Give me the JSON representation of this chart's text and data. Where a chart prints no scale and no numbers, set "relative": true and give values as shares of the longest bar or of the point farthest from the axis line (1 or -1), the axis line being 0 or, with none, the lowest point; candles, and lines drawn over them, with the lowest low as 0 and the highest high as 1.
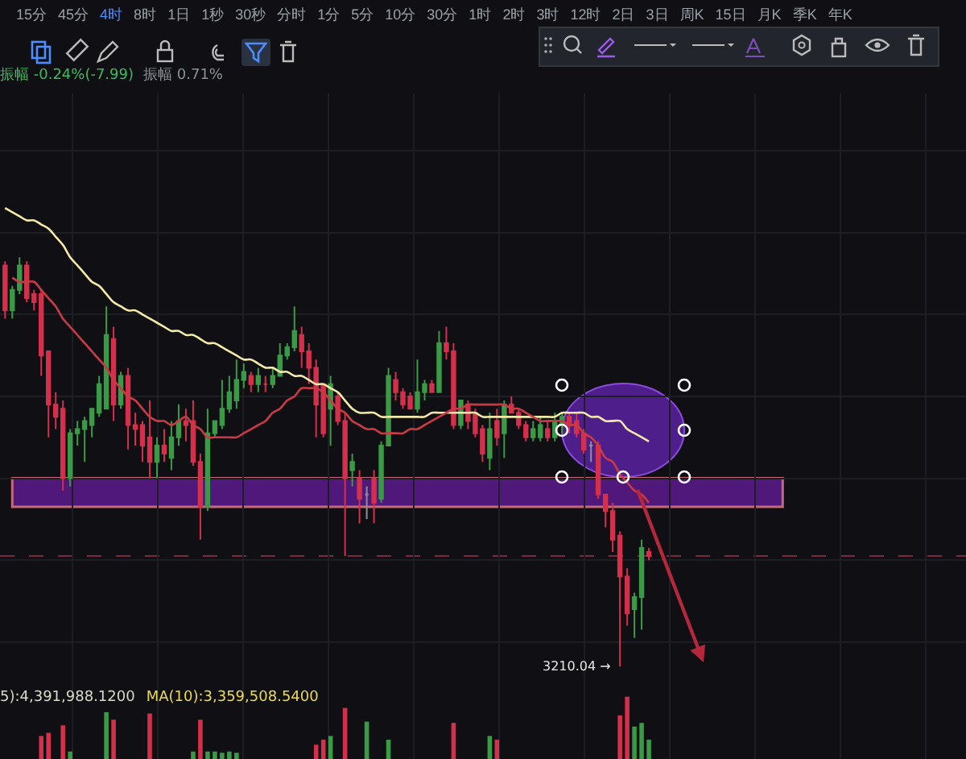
{
  "chart_data": [
    {
      "type": "candlestick",
      "relative": true,
      "grid": true,
      "categories": [
        null,
        null,
        null,
        null,
        null,
        null,
        null,
        null,
        null,
        null,
        null,
        null,
        null,
        null,
        null,
        null,
        null,
        null,
        null,
        null,
        null,
        null,
        null,
        null,
        null,
        null,
        null,
        null,
        null,
        null,
        null,
        null,
        null,
        null,
        null,
        null,
        null,
        null,
        null,
        null,
        null,
        null,
        null,
        null,
        null,
        null,
        null,
        null,
        null,
        null,
        null,
        null,
        null,
        null,
        null,
        null,
        null,
        null,
        null,
        null,
        null,
        null,
        null,
        null,
        null,
        null,
        null,
        null,
        null,
        null,
        null,
        null,
        null,
        null,
        null,
        null,
        null,
        null,
        null,
        null,
        null,
        null,
        null,
        null,
        null,
        null,
        null,
        null,
        null,
        null
      ],
      "series": [
        {
          "type": "candlestick",
          "colors": [
            "#d4304c",
            "#3a9a46",
            "#3a9a46",
            "#d4304c",
            "#d4304c",
            "#d4304c",
            "#d4304c",
            "#d4304c",
            "#d4304c",
            "#3a9a46",
            "#3a9a46",
            "#3a9a46",
            "#3a9a46",
            "#3a9a46",
            "#3a9a46",
            "#d4304c",
            "#3a9a46",
            "#d4304c",
            "#d4304c",
            "#d4304c",
            "#d4304c",
            "#3a9a46",
            "#d4304c",
            "#3a9a46",
            "#3a9a46",
            "#d4304c",
            "#d4304c",
            "#d4304c",
            "#3a9a46",
            "#3a9a46",
            "#3a9a46",
            "#3a9a46",
            "#3a9a46",
            "#3a9a46",
            "#d4304c",
            "#3a9a46",
            "#d4304c",
            "#3a9a46",
            "#3a9a46",
            "#3a9a46",
            "#3a9a46",
            "#d4304c",
            "#d4304c",
            "#d4304c",
            "#d4304c",
            "#3a9a46",
            "#d4304c",
            "#d4304c",
            "#3a9a46",
            "#d4304c",
            "#8a8f98",
            "#d4304c",
            "#3a9a46",
            "#3a9a46",
            "#d4304c",
            "#d4304c",
            "#d4304c",
            "#3a9a46",
            "#3a9a46",
            "#d4304c",
            "#3a9a46",
            "#d4304c",
            "#d4304c",
            "#3a9a46",
            "#d4304c",
            "#d4304c",
            "#d4304c",
            "#3a9a46",
            "#d4304c",
            "#3a9a46",
            "#d4304c",
            "#d4304c",
            "#d4304c",
            "#3a9a46",
            "#3a9a46",
            "#d4304c",
            "#3a9a46",
            "#3a9a46",
            "#d4304c",
            "#d4304c",
            "#d4304c",
            "#8a8f98",
            "#d4304c",
            "#d4304c",
            "#d4304c",
            "#d4304c",
            "#d4304c",
            "#3a9a46",
            "#3a9a46",
            "#d4304c"
          ],
          "ohlc": [
            [
              0.98,
              0.99,
              0.85,
              0.87
            ],
            [
              0.87,
              0.93,
              0.85,
              0.92
            ],
            [
              0.92,
              1,
              0.91,
              0.98
            ],
            [
              0.98,
              0.99,
              0.89,
              0.9
            ],
            [
              0.91,
              0.92,
              0.87,
              0.89
            ],
            [
              0.91,
              0.92,
              0.71,
              0.76
            ],
            [
              0.77,
              0.77,
              0.56,
              0.64
            ],
            [
              0.64,
              0.67,
              0.58,
              0.61
            ],
            [
              0.63,
              0.65,
              0.43,
              0.46
            ],
            [
              0.46,
              0.58,
              0.44,
              0.57
            ],
            [
              0.57,
              0.6,
              0.54,
              0.58
            ],
            [
              0.58,
              0.61,
              0.5,
              0.6
            ],
            [
              0.59,
              0.63,
              0.56,
              0.63
            ],
            [
              0.62,
              0.71,
              0.61,
              0.69
            ],
            [
              0.63,
              0.88,
              0.63,
              0.81
            ],
            [
              0.8,
              0.83,
              0.6,
              0.64
            ],
            [
              0.64,
              0.72,
              0.63,
              0.71
            ],
            [
              0.71,
              0.73,
              0.53,
              0.59
            ],
            [
              0.59,
              0.62,
              0.54,
              0.58
            ],
            [
              0.59,
              0.6,
              0.5,
              0.54
            ],
            [
              0.56,
              0.65,
              0.46,
              0.5
            ],
            [
              0.5,
              0.56,
              0.46,
              0.54
            ],
            [
              0.54,
              0.58,
              0.5,
              0.52
            ],
            [
              0.51,
              0.6,
              0.48,
              0.56
            ],
            [
              0.56,
              0.64,
              0.54,
              0.6
            ],
            [
              0.6,
              0.63,
              0.55,
              0.59
            ],
            [
              0.6,
              0.65,
              0.49,
              0.5
            ],
            [
              0.5,
              0.52,
              0.31,
              0.39
            ],
            [
              0.39,
              0.63,
              0.38,
              0.57
            ],
            [
              0.57,
              0.6,
              0.56,
              0.6
            ],
            [
              0.59,
              0.7,
              0.58,
              0.63
            ],
            [
              0.63,
              0.71,
              0.62,
              0.67
            ],
            [
              0.65,
              0.75,
              0.63,
              0.7
            ],
            [
              0.7,
              0.74,
              0.68,
              0.72
            ],
            [
              0.71,
              0.72,
              0.67,
              0.69
            ],
            [
              0.69,
              0.73,
              0.67,
              0.71
            ],
            [
              0.69,
              0.71,
              0.67,
              0.69
            ],
            [
              0.69,
              0.73,
              0.68,
              0.71
            ],
            [
              0.71,
              0.79,
              0.71,
              0.76
            ],
            [
              0.76,
              0.79,
              0.75,
              0.78
            ],
            [
              0.78,
              0.88,
              0.77,
              0.82
            ],
            [
              0.81,
              0.83,
              0.73,
              0.77
            ],
            [
              0.77,
              0.79,
              0.69,
              0.73
            ],
            [
              0.73,
              0.75,
              0.56,
              0.64
            ],
            [
              0.69,
              0.69,
              0.56,
              0.57
            ],
            [
              0.63,
              0.71,
              0.54,
              0.69
            ],
            [
              0.66,
              0.67,
              0.59,
              0.6
            ],
            [
              0.6,
              0.62,
              0.27,
              0.46
            ],
            [
              0.48,
              0.52,
              0.44,
              0.5
            ],
            [
              0.46,
              0.48,
              0.35,
              0.41
            ],
            [
              0.42,
              0.44,
              0.36,
              0.42
            ],
            [
              0.46,
              0.48,
              0.35,
              0.4
            ],
            [
              0.41,
              0.55,
              0.4,
              0.54
            ],
            [
              0.54,
              0.73,
              0.54,
              0.71
            ],
            [
              0.7,
              0.72,
              0.65,
              0.67
            ],
            [
              0.67,
              0.68,
              0.63,
              0.64
            ],
            [
              0.66,
              0.67,
              0.63,
              0.63
            ],
            [
              0.63,
              0.75,
              0.62,
              0.67
            ],
            [
              0.67,
              0.7,
              0.65,
              0.69
            ],
            [
              0.69,
              0.7,
              0.67,
              0.67
            ],
            [
              0.67,
              0.82,
              0.67,
              0.79
            ],
            [
              0.79,
              0.83,
              0.75,
              0.77
            ],
            [
              0.77,
              0.79,
              0.58,
              0.59
            ],
            [
              0.59,
              0.65,
              0.58,
              0.65
            ],
            [
              0.64,
              0.65,
              0.58,
              0.6
            ],
            [
              0.62,
              0.63,
              0.56,
              0.57
            ],
            [
              0.58,
              0.59,
              0.5,
              0.52
            ],
            [
              0.51,
              0.62,
              0.48,
              0.58
            ],
            [
              0.6,
              0.63,
              0.54,
              0.56
            ],
            [
              0.57,
              0.65,
              0.51,
              0.64
            ],
            [
              0.64,
              0.66,
              0.62,
              0.62
            ],
            [
              0.62,
              0.63,
              0.58,
              0.59
            ],
            [
              0.59,
              0.6,
              0.55,
              0.56
            ],
            [
              0.56,
              0.6,
              0.55,
              0.58
            ],
            [
              0.56,
              0.61,
              0.55,
              0.59
            ],
            [
              0.58,
              0.6,
              0.55,
              0.56
            ],
            [
              0.56,
              0.62,
              0.55,
              0.6
            ],
            [
              0.59,
              0.62,
              0.57,
              0.61
            ],
            [
              0.61,
              0.62,
              0.57,
              0.59
            ],
            [
              0.6,
              0.62,
              0.56,
              0.57
            ],
            [
              0.57,
              0.58,
              0.52,
              0.53
            ],
            [
              0.54,
              0.55,
              0.5,
              0.54
            ],
            [
              0.54,
              0.55,
              0.41,
              0.42
            ],
            [
              0.42,
              0.42,
              0.34,
              0.38
            ],
            [
              0.38,
              0.4,
              0.28,
              0.31
            ],
            [
              0.32,
              0.33,
              0,
              0.22
            ],
            [
              0.22,
              0.24,
              0.1,
              0.13
            ],
            [
              0.14,
              0.18,
              0.07,
              0.17
            ],
            [
              0.17,
              0.31,
              0.09,
              0.29
            ],
            [
              0.28,
              0.29,
              0.26,
              0.27
            ]
          ]
        },
        {
          "type": "line",
          "color": "#f3e9a6",
          "values": [
            1.12,
            1.11,
            1.1,
            1.09,
            1.09,
            1.08,
            1.07,
            1.05,
            1.03,
            1.0,
            0.98,
            0.96,
            0.94,
            0.93,
            0.91,
            0.89,
            0.88,
            0.87,
            0.87,
            0.86,
            0.85,
            0.84,
            0.83,
            0.82,
            0.82,
            0.81,
            0.81,
            0.8,
            0.79,
            0.79,
            0.78,
            0.77,
            0.76,
            0.75,
            0.75,
            0.74,
            0.73,
            0.73,
            0.72,
            0.72,
            0.71,
            0.71,
            0.7,
            0.69,
            0.69,
            0.68,
            0.67,
            0.65,
            0.63,
            0.62,
            0.62,
            0.62,
            0.61,
            0.61,
            0.61,
            0.61,
            0.61,
            0.61,
            0.61,
            0.62,
            0.62,
            0.62,
            0.62,
            0.62,
            0.62,
            0.62,
            0.61,
            0.61,
            0.61,
            0.61,
            0.61,
            0.61,
            0.61,
            0.61,
            0.61,
            0.61,
            0.61,
            0.62,
            0.62,
            0.62,
            0.62,
            0.61,
            0.61,
            0.6,
            0.6,
            0.6,
            0.58,
            0.57,
            0.56,
            0.55
          ]
        },
        {
          "type": "line",
          "color": "#c93a45",
          "values": [
            null,
            0.95,
            0.94,
            0.94,
            0.94,
            0.92,
            0.9,
            0.88,
            0.85,
            0.83,
            0.81,
            0.79,
            0.77,
            0.75,
            0.73,
            0.7,
            0.68,
            0.66,
            0.65,
            0.63,
            0.61,
            0.6,
            0.6,
            0.59,
            0.6,
            0.61,
            0.59,
            0.58,
            0.56,
            0.56,
            0.56,
            0.56,
            0.56,
            0.57,
            0.58,
            0.59,
            0.6,
            0.62,
            0.63,
            0.65,
            0.66,
            0.68,
            0.68,
            0.68,
            0.67,
            0.65,
            0.63,
            0.62,
            0.6,
            0.59,
            0.58,
            0.58,
            0.57,
            0.57,
            0.57,
            0.57,
            0.58,
            0.58,
            0.59,
            0.6,
            0.61,
            0.62,
            0.63,
            0.63,
            0.64,
            0.64,
            0.64,
            0.64,
            0.64,
            0.64,
            0.63,
            0.63,
            0.62,
            0.61,
            0.6,
            0.6,
            0.6,
            0.6,
            0.59,
            0.59,
            0.57,
            0.56,
            0.54,
            0.51,
            0.5,
            0.47,
            0.45,
            0.43,
            0.42,
            0.4
          ]
        }
      ],
      "bands": [
        {
          "axis": "y",
          "from": 0.39,
          "to": 0.46,
          "color": "#5a1a8c"
        }
      ],
      "ref_lines": [
        {
          "axis": "y",
          "value": 0.27,
          "color": "#7a2a3c",
          "line_style": "dashed"
        }
      ],
      "annotations": [
        "15分",
        "45分",
        "4时",
        "8时",
        "1日",
        "1秒",
        "30秒",
        "分时",
        "1分",
        "5分",
        "10分",
        "30分",
        "1时",
        "2时",
        "3时",
        "12时",
        "2日",
        "3日",
        "周K",
        "15日",
        "月K",
        "季K",
        "年K",
        "振幅 -0.24%(-7.99)",
        "振幅 0.71%",
        "3210.04 →"
      ]
    },
    {
      "type": "bar",
      "relative": true,
      "grid": true,
      "categories": [
        null,
        null,
        null,
        null,
        null,
        null,
        null,
        null,
        null,
        null,
        null,
        null,
        null,
        null,
        null,
        null,
        null,
        null,
        null,
        null,
        null,
        null,
        null,
        null,
        null,
        null,
        null,
        null,
        null,
        null,
        null,
        null,
        null,
        null,
        null,
        null,
        null,
        null,
        null,
        null,
        null,
        null,
        null,
        null,
        null,
        null,
        null,
        null,
        null,
        null,
        null,
        null,
        null,
        null,
        null,
        null,
        null,
        null,
        null,
        null,
        null,
        null,
        null,
        null,
        null,
        null,
        null,
        null,
        null,
        null,
        null,
        null,
        null,
        null,
        null,
        null,
        null,
        null,
        null,
        null,
        null,
        null,
        null,
        null,
        null,
        null,
        null,
        null,
        null,
        null
      ],
      "values": [
        null,
        null,
        null,
        null,
        null,
        0.37,
        0.42,
        null,
        0.54,
        0.12,
        null,
        null,
        null,
        null,
        0.75,
        0.63,
        null,
        null,
        null,
        null,
        0.73,
        null,
        null,
        null,
        null,
        null,
        0.12,
        0.63,
        0.12,
        0.12,
        0.1,
        0.12,
        0.1,
        null,
        null,
        null,
        null,
        null,
        null,
        null,
        null,
        null,
        null,
        0.23,
        0.31,
        0.37,
        null,
        0.82,
        null,
        null,
        0.6,
        null,
        null,
        0.31,
        null,
        null,
        null,
        null,
        null,
        null,
        null,
        null,
        0.58,
        null,
        null,
        null,
        null,
        0.37,
        0.31,
        null,
        null,
        null,
        null,
        null,
        null,
        null,
        null,
        null,
        null,
        null,
        null,
        null,
        null,
        null,
        null,
        0.7,
        1,
        0.52,
        0.58,
        0.31
      ],
      "colors": [
        null,
        null,
        null,
        null,
        null,
        "#d4304c",
        "#d4304c",
        null,
        "#d4304c",
        "#3a9a46",
        null,
        null,
        null,
        null,
        "#3a9a46",
        "#d4304c",
        null,
        null,
        null,
        null,
        "#d4304c",
        null,
        null,
        null,
        null,
        null,
        "#3a9a46",
        "#d4304c",
        "#3a9a46",
        "#3a9a46",
        "#3a9a46",
        "#3a9a46",
        "#3a9a46",
        null,
        null,
        null,
        null,
        null,
        null,
        null,
        null,
        null,
        null,
        "#d4304c",
        "#d4304c",
        "#3a9a46",
        null,
        "#d4304c",
        null,
        null,
        "#3a9a46",
        null,
        null,
        "#3a9a46",
        null,
        null,
        null,
        null,
        null,
        null,
        null,
        null,
        "#d4304c",
        null,
        null,
        null,
        null,
        "#3a9a46",
        "#d4304c",
        null,
        null,
        null,
        null,
        null,
        null,
        null,
        null,
        null,
        null,
        null,
        null,
        null,
        null,
        null,
        null,
        "#d4304c",
        "#d4304c",
        "#3a9a46",
        "#3a9a46",
        "#3a9a46"
      ],
      "annotations": [
        "5):4,391,988.1200",
        "MA(10):3,359,508.5400"
      ]
    }
  ]
}
